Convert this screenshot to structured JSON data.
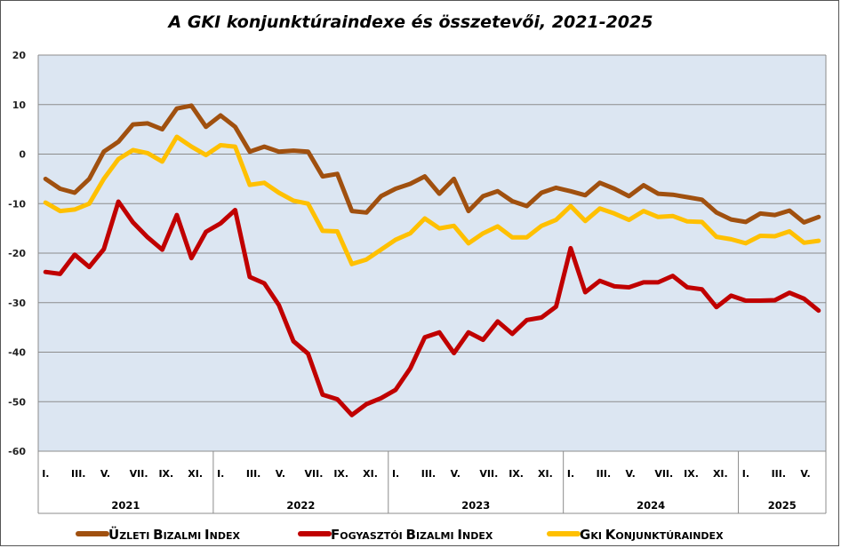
{
  "chart_data": {
    "type": "line",
    "title": "A GKI konjunktúraindexe és összetevői, 2021-2025",
    "ylim": [
      -60,
      20
    ],
    "y_ticks": [
      "20",
      "10",
      "0",
      "-10",
      "-20",
      "-30",
      "-40",
      "-50",
      "-60"
    ],
    "month_labels": [
      "I.",
      "III.",
      "V.",
      "VII.",
      "IX.",
      "XI."
    ],
    "years": [
      {
        "label": "2021",
        "months": 12
      },
      {
        "label": "2022",
        "months": 12
      },
      {
        "label": "2023",
        "months": 12
      },
      {
        "label": "2024",
        "months": 12
      },
      {
        "label": "2025",
        "months": 6
      }
    ],
    "grid": true,
    "legend_position": "bottom",
    "series": [
      {
        "name": "Üzleti bizalmi index",
        "color": "#A0500F",
        "values": [
          -5,
          -7,
          -7.8,
          -5,
          0.5,
          2.5,
          6,
          6.2,
          5,
          9.2,
          9.8,
          5.5,
          7.8,
          5.5,
          0.5,
          1.5,
          0.5,
          0.7,
          0.5,
          -4.5,
          -4,
          -11.5,
          -11.8,
          -8.5,
          -7,
          -6,
          -4.5,
          -8,
          -5,
          -11.5,
          -8.5,
          -7.5,
          -9.5,
          -10.5,
          -7.8,
          -6.8,
          -7.5,
          -8.3,
          -5.8,
          -7,
          -8.5,
          -6.3,
          -8,
          -8.2,
          -8.7,
          -9.2,
          -11.8,
          -13.2,
          -13.7,
          -12,
          -12.3,
          -11.4,
          -13.8,
          -12.7
        ]
      },
      {
        "name": "Fogyasztói bizalmi index",
        "color": "#C00000",
        "values": [
          -23.8,
          -24.2,
          -20.3,
          -22.8,
          -19.2,
          -9.6,
          -13.8,
          -16.8,
          -19.3,
          -12.3,
          -21,
          -15.7,
          -14,
          -11.3,
          -24.8,
          -26.1,
          -30.5,
          -37.8,
          -40.3,
          -48.6,
          -49.5,
          -52.7,
          -50.5,
          -49.3,
          -47.6,
          -43.3,
          -37,
          -36,
          -40.2,
          -36,
          -37.5,
          -33.8,
          -36.3,
          -33.5,
          -33,
          -30.8,
          -19,
          -27.9,
          -25.6,
          -26.7,
          -26.9,
          -25.9,
          -25.9,
          -24.6,
          -26.9,
          -27.3,
          -30.9,
          -28.6,
          -29.6,
          -29.6,
          -29.5,
          -28,
          -29.2,
          -31.6
        ]
      },
      {
        "name": "GKI konjunktúraindex",
        "color": "#FFC000",
        "values": [
          -9.8,
          -11.5,
          -11.2,
          -10,
          -5,
          -1,
          0.8,
          0.2,
          -1.5,
          3.5,
          1.5,
          -0.2,
          1.8,
          1.5,
          -6.2,
          -5.8,
          -7.8,
          -9.4,
          -10,
          -15.5,
          -15.6,
          -22.2,
          -21.3,
          -19.3,
          -17.3,
          -16,
          -13,
          -15,
          -14.5,
          -18,
          -16,
          -14.6,
          -16.8,
          -16.8,
          -14.5,
          -13.3,
          -10.5,
          -13.5,
          -11,
          -12,
          -13.3,
          -11.5,
          -12.7,
          -12.5,
          -13.6,
          -13.7,
          -16.7,
          -17.2,
          -18,
          -16.5,
          -16.6,
          -15.6,
          -17.9,
          -17.5
        ]
      }
    ]
  }
}
